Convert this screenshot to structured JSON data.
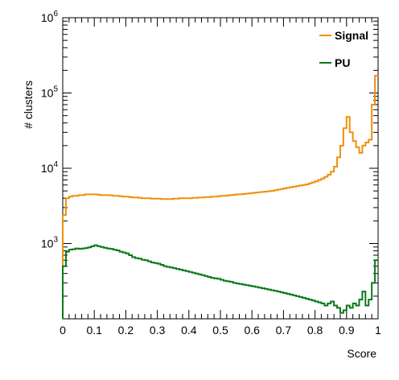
{
  "chart_data": {
    "type": "line",
    "step": true,
    "xlabel": "Score",
    "ylabel": "# clusters",
    "xlim": [
      0,
      1
    ],
    "ylim": [
      100,
      1000000
    ],
    "yscale": "log",
    "x_ticks": [
      0,
      0.1,
      0.2,
      0.3,
      0.4,
      0.5,
      0.6,
      0.7,
      0.8,
      0.9,
      1
    ],
    "x_tick_labels": [
      "0",
      "0.1",
      "0.2",
      "0.3",
      "0.4",
      "0.5",
      "0.6",
      "0.7",
      "0.8",
      "0.9",
      "1"
    ],
    "y_ticks": [
      {
        "base": "10",
        "exp": "3",
        "value": 1000
      },
      {
        "base": "10",
        "exp": "4",
        "value": 10000
      },
      {
        "base": "10",
        "exp": "5",
        "value": 100000
      },
      {
        "base": "10",
        "exp": "6",
        "value": 1000000
      }
    ],
    "legend_position": "top-right",
    "series": [
      {
        "name": "Signal",
        "color": "#f0900a",
        "bins": 100,
        "values": [
          2400,
          4000,
          4200,
          4300,
          4300,
          4400,
          4400,
          4500,
          4500,
          4500,
          4500,
          4450,
          4400,
          4400,
          4400,
          4350,
          4300,
          4300,
          4250,
          4200,
          4200,
          4150,
          4100,
          4100,
          4050,
          4000,
          4000,
          4000,
          3950,
          3950,
          3950,
          3900,
          3900,
          3900,
          3900,
          3950,
          3950,
          4000,
          4000,
          4000,
          4000,
          4050,
          4050,
          4100,
          4100,
          4150,
          4150,
          4200,
          4200,
          4250,
          4300,
          4300,
          4350,
          4400,
          4450,
          4500,
          4500,
          4550,
          4600,
          4650,
          4700,
          4750,
          4800,
          4850,
          4900,
          4950,
          5000,
          5100,
          5200,
          5300,
          5400,
          5500,
          5600,
          5700,
          5800,
          5900,
          6000,
          6100,
          6300,
          6500,
          6700,
          7000,
          7300,
          7700,
          8200,
          9000,
          10500,
          14000,
          20000,
          34000,
          48000,
          30000,
          23000,
          19000,
          16000,
          20000,
          22000,
          24000,
          70000,
          170000
        ]
      },
      {
        "name": "PU",
        "color": "#0a7a18",
        "bins": 100,
        "values": [
          500,
          780,
          830,
          840,
          860,
          850,
          860,
          870,
          890,
          920,
          950,
          920,
          900,
          880,
          860,
          850,
          830,
          810,
          780,
          760,
          740,
          700,
          660,
          640,
          630,
          610,
          600,
          580,
          560,
          550,
          540,
          520,
          500,
          490,
          480,
          470,
          460,
          450,
          440,
          430,
          420,
          410,
          400,
          390,
          380,
          370,
          360,
          350,
          345,
          340,
          330,
          320,
          315,
          310,
          300,
          295,
          290,
          285,
          280,
          275,
          270,
          265,
          260,
          255,
          250,
          245,
          240,
          235,
          230,
          225,
          220,
          215,
          210,
          205,
          200,
          195,
          190,
          185,
          180,
          175,
          170,
          165,
          160,
          150,
          160,
          170,
          150,
          140,
          120,
          130,
          150,
          140,
          160,
          150,
          180,
          230,
          150,
          180,
          300,
          600
        ]
      }
    ]
  }
}
